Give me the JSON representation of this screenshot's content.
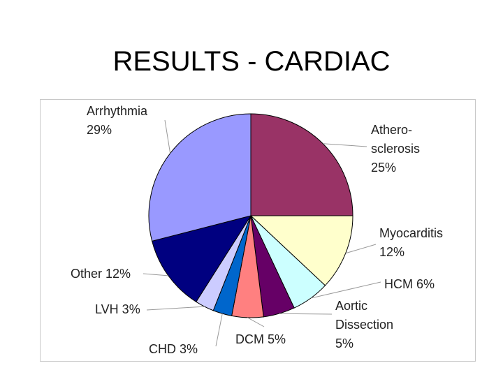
{
  "slide": {
    "title": "RESULTS - CARDIAC"
  },
  "chart_data": {
    "type": "pie",
    "title": "",
    "slices": [
      {
        "label": [
          "Athero-",
          "sclerosis",
          "25%"
        ],
        "value": 25,
        "color": "#993366"
      },
      {
        "label": [
          "Myocarditis",
          "12%"
        ],
        "value": 12,
        "color": "#FFFFCC"
      },
      {
        "label": [
          "HCM 6%"
        ],
        "value": 6,
        "color": "#CCFFFF"
      },
      {
        "label": [
          "Aortic",
          "Dissection",
          "5%"
        ],
        "value": 5,
        "color": "#660066"
      },
      {
        "label": [
          "DCM 5%"
        ],
        "value": 5,
        "color": "#FF8080"
      },
      {
        "label": [
          "CHD 3%"
        ],
        "value": 3,
        "color": "#0066CC"
      },
      {
        "label": [
          "LVH 3%"
        ],
        "value": 3,
        "color": "#CCCCFF"
      },
      {
        "label": [
          "Other 12%"
        ],
        "value": 12,
        "color": "#000080"
      },
      {
        "label": [
          "Arrhythmia",
          "29%"
        ],
        "value": 29,
        "color": "#9999FF"
      }
    ]
  }
}
